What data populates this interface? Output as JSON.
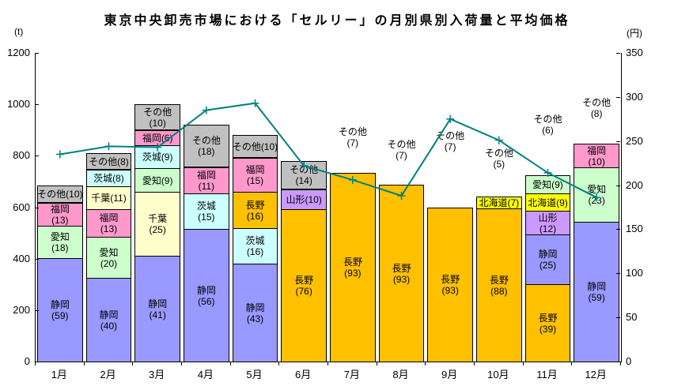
{
  "title": "東京中央卸売市場における「セルリー」の月別県別入荷量と平均価格",
  "chart_data": {
    "type": "bar",
    "subtype": "stacked-column-with-line",
    "title": "東京中央卸売市場における「セルリー」の月別県別入荷量と平均価格",
    "grid": false,
    "legend": "none",
    "categories": [
      "1月",
      "2月",
      "3月",
      "4月",
      "5月",
      "6月",
      "7月",
      "8月",
      "9月",
      "10月",
      "11月",
      "12月"
    ],
    "left_axis": {
      "unit": "(t)",
      "min": 0,
      "max": 1200,
      "step": 200
    },
    "right_axis": {
      "unit": "(円)",
      "min": 0,
      "max": 350,
      "step": 50
    },
    "segment_value_meaning": "percent share of monthly arrivals",
    "palette": {
      "shizuoka": "#9999FF",
      "aichi": "#CCFFCC",
      "fukuoka": "#FF99CC",
      "chiba": "#FFFFCC",
      "ibaraki": "#CCFFFF",
      "nagano": "#FFC000",
      "yamagata": "#CC99FF",
      "hokkaido": "#FFFF00",
      "other": "#C0C0C0"
    },
    "bars": [
      {
        "month": "1月",
        "total_t": 685,
        "segments": [
          {
            "name": "静岡",
            "key": "shizuoka",
            "pct": 59,
            "label": "two-line"
          },
          {
            "name": "愛知",
            "key": "aichi",
            "pct": 18,
            "label": "two-line"
          },
          {
            "name": "福岡",
            "key": "fukuoka",
            "pct": 13,
            "label": "two-line"
          },
          {
            "name": "その他",
            "key": "other",
            "pct": 10,
            "label": "one-line"
          }
        ]
      },
      {
        "month": "2月",
        "total_t": 810,
        "segments": [
          {
            "name": "静岡",
            "key": "shizuoka",
            "pct": 40,
            "label": "two-line"
          },
          {
            "name": "愛知",
            "key": "aichi",
            "pct": 20,
            "label": "two-line"
          },
          {
            "name": "福岡",
            "key": "fukuoka",
            "pct": 13,
            "label": "two-line"
          },
          {
            "name": "千葉",
            "key": "chiba",
            "pct": 11,
            "label": "one-line"
          },
          {
            "name": "茨城",
            "key": "ibaraki",
            "pct": 8,
            "label": "one-line"
          },
          {
            "name": "その他",
            "key": "other",
            "pct": 8,
            "label": "one-line"
          }
        ]
      },
      {
        "month": "3月",
        "total_t": 1000,
        "segments": [
          {
            "name": "静岡",
            "key": "shizuoka",
            "pct": 41,
            "label": "two-line"
          },
          {
            "name": "千葉",
            "key": "chiba",
            "pct": 25,
            "label": "two-line"
          },
          {
            "name": "愛知",
            "key": "aichi",
            "pct": 9,
            "label": "one-line"
          },
          {
            "name": "茨城",
            "key": "ibaraki",
            "pct": 9,
            "label": "one-line"
          },
          {
            "name": "福岡",
            "key": "fukuoka",
            "pct": 6,
            "label": "one-line"
          },
          {
            "name": "その他",
            "key": "other",
            "pct": 10,
            "label": "two-line"
          }
        ]
      },
      {
        "month": "4月",
        "total_t": 920,
        "segments": [
          {
            "name": "静岡",
            "key": "shizuoka",
            "pct": 56,
            "label": "two-line"
          },
          {
            "name": "茨城",
            "key": "ibaraki",
            "pct": 15,
            "label": "two-line"
          },
          {
            "name": "福岡",
            "key": "fukuoka",
            "pct": 11,
            "label": "two-line"
          },
          {
            "name": "その他",
            "key": "other",
            "pct": 18,
            "label": "two-line"
          }
        ]
      },
      {
        "month": "5月",
        "total_t": 880,
        "segments": [
          {
            "name": "静岡",
            "key": "shizuoka",
            "pct": 43,
            "label": "two-line"
          },
          {
            "name": "茨城",
            "key": "ibaraki",
            "pct": 16,
            "label": "two-line"
          },
          {
            "name": "長野",
            "key": "nagano",
            "pct": 16,
            "label": "two-line"
          },
          {
            "name": "福岡",
            "key": "fukuoka",
            "pct": 15,
            "label": "two-line"
          },
          {
            "name": "その他",
            "key": "other",
            "pct": 10,
            "label": "one-line"
          }
        ]
      },
      {
        "month": "6月",
        "total_t": 780,
        "segments": [
          {
            "name": "長野",
            "key": "nagano",
            "pct": 76,
            "label": "two-line"
          },
          {
            "name": "山形",
            "key": "yamagata",
            "pct": 10,
            "label": "one-line"
          },
          {
            "name": "その他",
            "key": "other",
            "pct": 14,
            "label": "two-line"
          }
        ]
      },
      {
        "month": "7月",
        "total_t": 790,
        "above_gap": 13,
        "segments": [
          {
            "name": "長野",
            "key": "nagano",
            "pct": 93,
            "label": "two-line"
          },
          {
            "name": "その他",
            "key": "other",
            "pct": 7,
            "label": "above"
          }
        ]
      },
      {
        "month": "8月",
        "total_t": 740,
        "above_gap": 13,
        "segments": [
          {
            "name": "長野",
            "key": "nagano",
            "pct": 93,
            "label": "two-line"
          },
          {
            "name": "その他",
            "key": "other",
            "pct": 7,
            "label": "above"
          }
        ]
      },
      {
        "month": "9月",
        "total_t": 645,
        "above_gap": 55,
        "segments": [
          {
            "name": "長野",
            "key": "nagano",
            "pct": 93,
            "label": "two-line"
          },
          {
            "name": "その他",
            "key": "other",
            "pct": 7,
            "label": "above"
          }
        ]
      },
      {
        "month": "10月",
        "total_t": 675,
        "above_gap": 23,
        "segments": [
          {
            "name": "長野",
            "key": "nagano",
            "pct": 88,
            "label": "two-line"
          },
          {
            "name": "北海道",
            "key": "hokkaido",
            "pct": 7,
            "label": "one-line"
          },
          {
            "name": "その他",
            "key": "other",
            "pct": 5,
            "label": "above"
          }
        ]
      },
      {
        "month": "11月",
        "total_t": 770,
        "above_gap": 35,
        "segments": [
          {
            "name": "長野",
            "key": "nagano",
            "pct": 39,
            "label": "two-line"
          },
          {
            "name": "静岡",
            "key": "shizuoka",
            "pct": 25,
            "label": "two-line"
          },
          {
            "name": "山形",
            "key": "yamagata",
            "pct": 12,
            "label": "two-line"
          },
          {
            "name": "北海道",
            "key": "hokkaido",
            "pct": 9,
            "label": "one-line"
          },
          {
            "name": "愛知",
            "key": "aichi",
            "pct": 9,
            "label": "one-line"
          },
          {
            "name": "その他",
            "key": "other",
            "pct": 6,
            "label": "above"
          }
        ]
      },
      {
        "month": "12月",
        "total_t": 920,
        "above_gap": 7,
        "segments": [
          {
            "name": "静岡",
            "key": "shizuoka",
            "pct": 59,
            "label": "two-line"
          },
          {
            "name": "愛知",
            "key": "aichi",
            "pct": 23,
            "label": "two-line"
          },
          {
            "name": "福岡",
            "key": "fukuoka",
            "pct": 10,
            "label": "two-line"
          },
          {
            "name": "その他",
            "key": "other",
            "pct": 8,
            "label": "above"
          }
        ]
      }
    ],
    "line_series": {
      "name": "平均価格",
      "unit": "円",
      "color": "#008080",
      "marker": "plus",
      "values": [
        235,
        244,
        243,
        285,
        293,
        222,
        206,
        188,
        275,
        251,
        214,
        186
      ]
    }
  }
}
